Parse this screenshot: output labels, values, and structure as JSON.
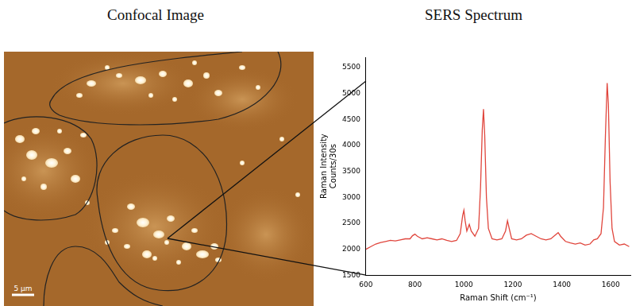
{
  "headings": {
    "left": "Confocal Image",
    "right": "SERS Spectrum"
  },
  "image": {
    "scale_bar": "5 µm"
  },
  "chart_data": {
    "type": "line",
    "x_label": "Raman Shift (cm⁻¹)",
    "y_label": [
      "Raman Intensity",
      "Counts/30s"
    ],
    "color": "#e0453c",
    "x": [
      600,
      620,
      640,
      660,
      680,
      700,
      720,
      740,
      760,
      780,
      790,
      800,
      810,
      830,
      850,
      870,
      890,
      910,
      930,
      950,
      970,
      985,
      995,
      1000,
      1005,
      1012,
      1022,
      1030,
      1045,
      1060,
      1068,
      1075,
      1080,
      1085,
      1092,
      1100,
      1115,
      1135,
      1155,
      1170,
      1178,
      1185,
      1195,
      1215,
      1235,
      1255,
      1275,
      1295,
      1315,
      1335,
      1355,
      1375,
      1385,
      1395,
      1415,
      1435,
      1455,
      1475,
      1495,
      1515,
      1530,
      1545,
      1560,
      1570,
      1578,
      1585,
      1590,
      1597,
      1605,
      1615,
      1635,
      1655,
      1675
    ],
    "values": [
      2000,
      2050,
      2100,
      2130,
      2150,
      2170,
      2160,
      2180,
      2200,
      2200,
      2260,
      2290,
      2250,
      2200,
      2220,
      2200,
      2180,
      2200,
      2170,
      2150,
      2170,
      2300,
      2650,
      2750,
      2550,
      2350,
      2480,
      2350,
      2250,
      2400,
      3200,
      4300,
      4700,
      4200,
      3000,
      2400,
      2200,
      2180,
      2200,
      2350,
      2550,
      2400,
      2200,
      2180,
      2200,
      2270,
      2300,
      2250,
      2200,
      2180,
      2200,
      2280,
      2320,
      2250,
      2150,
      2120,
      2100,
      2120,
      2080,
      2100,
      2180,
      2200,
      2300,
      2800,
      4200,
      5200,
      4800,
      3300,
      2400,
      2150,
      2080,
      2100,
      2050
    ],
    "xlim": [
      600,
      1680
    ],
    "xticks": [
      600,
      800,
      1000,
      1200,
      1400,
      1600
    ],
    "ylim": [
      1500,
      5700
    ],
    "yticks": [
      1500,
      2000,
      2500,
      3000,
      3500,
      4000,
      4500,
      5000,
      5500
    ],
    "grid": false
  }
}
